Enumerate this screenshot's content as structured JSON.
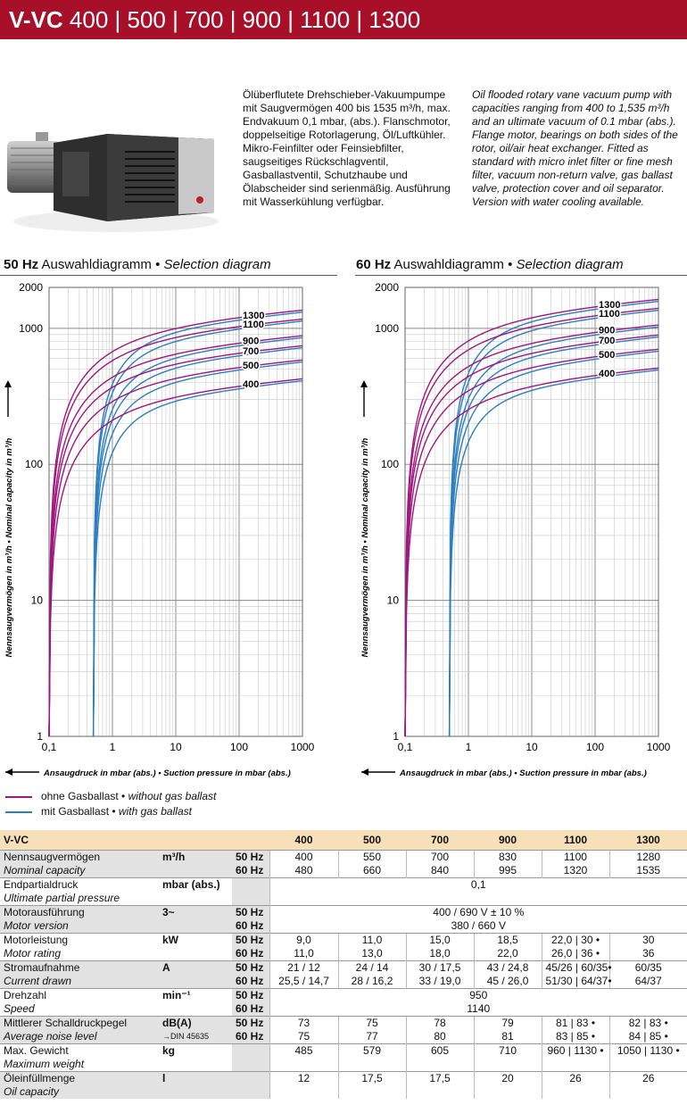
{
  "header": {
    "model": "V-VC",
    "sizes": "400 | 500 | 700 | 900 | 1100 | 1300"
  },
  "description": {
    "de": "Ölüberflutete Drehschieber-Vakuumpumpe mit Saugvermögen 400 bis 1535 m³/h, max. Endvakuum 0,1 mbar, (abs.). Flanschmotor, doppelseitige Rotorlagerung, Öl/Luftkühler. Mikro-Feinfilter oder Feinsiebfilter, saugseitiges Rückschlagventil, Gasballastventil, Schutzhaube und Ölabscheider sind serienmäßig. Ausführung mit Wasserkühlung verfügbar.",
    "en": "Oil flooded rotary vane vacuum pump with capacities ranging from 400 to 1,535 m³/h and an ultimate vacuum of 0.1 mbar (abs.). Flange motor, bearings on both sides of the rotor, oil/air heat exchanger. Fitted as standard with micro inlet filter or fine mesh filter, vacuum non-return valve, gas ballast valve, protection cover and oil separator. Version with water cooling available."
  },
  "diagrams": {
    "title_50_hz": "50 Hz",
    "title_50_rest": "Auswahldiagramm •",
    "title_50_it": "Selection diagram",
    "title_60_hz": "60 Hz",
    "title_60_rest": "Auswahldiagramm •",
    "title_60_it": "Selection diagram",
    "ylabel": "Nennsaugvermögen in m³/h • Nominal capacity in m³/h",
    "xlabel": "Ansaugdruck in mbar (abs.) • Suction pressure in mbar (abs.)"
  },
  "legend": {
    "without": "ohne Gasballast •",
    "without_it": "without gas ballast",
    "with": "mit Gasballast •",
    "with_it": "with gas ballast",
    "color_without": "#a0167e",
    "color_with": "#2b7fc0"
  },
  "chart_data": [
    {
      "type": "line",
      "title": "50 Hz Auswahldiagramm • Selection diagram",
      "xscale": "log",
      "yscale": "log",
      "xlim": [
        0.1,
        1000
      ],
      "ylim": [
        1,
        2000
      ],
      "xticks": [
        "0,1",
        "1",
        "10",
        "100",
        "1000"
      ],
      "yticks": [
        "1",
        "10",
        "100",
        "1000",
        "2000"
      ],
      "xlabel": "Ansaugdruck in mbar (abs.) • Suction pressure in mbar (abs.)",
      "ylabel": "Nennsaugvermögen in m³/h • Nominal capacity in m³/h",
      "ultimate_pressure_without_gas_ballast": 0.1,
      "ultimate_pressure_with_gas_ballast": 0.5,
      "series": [
        {
          "name": "1300",
          "max_capacity": 1280
        },
        {
          "name": "1100",
          "max_capacity": 1100
        },
        {
          "name": "900",
          "max_capacity": 830
        },
        {
          "name": "700",
          "max_capacity": 700
        },
        {
          "name": "500",
          "max_capacity": 550
        },
        {
          "name": "400",
          "max_capacity": 400
        }
      ]
    },
    {
      "type": "line",
      "title": "60 Hz Auswahldiagramm • Selection diagram",
      "xscale": "log",
      "yscale": "log",
      "xlim": [
        0.1,
        1000
      ],
      "ylim": [
        1,
        2000
      ],
      "xticks": [
        "0,1",
        "1",
        "10",
        "100",
        "1000"
      ],
      "yticks": [
        "1",
        "10",
        "100",
        "1000",
        "2000"
      ],
      "xlabel": "Ansaugdruck in mbar (abs.) • Suction pressure in mbar (abs.)",
      "ylabel": "Nennsaugvermögen in m³/h • Nominal capacity in m³/h",
      "ultimate_pressure_without_gas_ballast": 0.1,
      "ultimate_pressure_with_gas_ballast": 0.5,
      "series": [
        {
          "name": "1300",
          "max_capacity": 1535
        },
        {
          "name": "1100",
          "max_capacity": 1320
        },
        {
          "name": "900",
          "max_capacity": 995
        },
        {
          "name": "700",
          "max_capacity": 840
        },
        {
          "name": "500",
          "max_capacity": 660
        },
        {
          "name": "400",
          "max_capacity": 480
        }
      ]
    }
  ],
  "table": {
    "header": [
      "V-VC",
      "400",
      "500",
      "700",
      "900",
      "1100",
      "1300"
    ],
    "rows": [
      {
        "de": "Nennsaugvermögen",
        "en": "Nominal capacity",
        "unit": "m³/h",
        "shade": "g",
        "hz": [
          "50 Hz",
          "60 Hz"
        ],
        "vals": [
          [
            "400",
            "550",
            "700",
            "830",
            "1100",
            "1280"
          ],
          [
            "480",
            "660",
            "840",
            "995",
            "1320",
            "1535"
          ]
        ]
      },
      {
        "de": "Endpartialdruck",
        "en": "Ultimate partial pressure",
        "unit": "mbar (abs.)",
        "shade": "w",
        "hz": [
          "",
          ""
        ],
        "span": [
          "0,1",
          ""
        ]
      },
      {
        "de": "Motorausführung",
        "en": "Motor version",
        "unit": "3~",
        "shade": "g",
        "hz": [
          "50 Hz",
          "60 Hz"
        ],
        "span": [
          "400 / 690 V ± 10 %",
          "380 / 660 V"
        ]
      },
      {
        "de": "Motorleistung",
        "en": "Motor rating",
        "unit": "kW",
        "shade": "w",
        "hz": [
          "50 Hz",
          "60 Hz"
        ],
        "vals": [
          [
            "9,0",
            "11,0",
            "15,0",
            "18,5",
            "22,0 | 30 •",
            "30"
          ],
          [
            "11,0",
            "13,0",
            "18,0",
            "22,0",
            "26,0 | 36 •",
            "36"
          ]
        ]
      },
      {
        "de": "Stromaufnahme",
        "en": "Current drawn",
        "unit": "A",
        "shade": "g",
        "hz": [
          "50 Hz",
          "60 Hz"
        ],
        "vals": [
          [
            "21 / 12",
            "24 / 14",
            "30 / 17,5",
            "43 / 24,8",
            "45/26 | 60/35•",
            "60/35"
          ],
          [
            "25,5 / 14,7",
            "28 / 16,2",
            "33 / 19,0",
            "45 / 26,0",
            "51/30 | 64/37•",
            "64/37"
          ]
        ]
      },
      {
        "de": "Drehzahl",
        "en": "Speed",
        "unit": "min⁻¹",
        "shade": "w",
        "hz": [
          "50 Hz",
          "60 Hz"
        ],
        "span": [
          "950",
          "1140"
        ]
      },
      {
        "de": "Mittlerer Schalldruckpegel",
        "en": "Average noise level",
        "unit": "dB(A)",
        "unit2": "→DIN 45635",
        "shade": "g",
        "hz": [
          "50 Hz",
          "60 Hz"
        ],
        "vals": [
          [
            "73",
            "75",
            "78",
            "79",
            "81 | 83 •",
            "82 | 83 •"
          ],
          [
            "75",
            "77",
            "80",
            "81",
            "83 | 85 •",
            "84 | 85 •"
          ]
        ]
      },
      {
        "de": "Max. Gewicht",
        "en": "Maximum weight",
        "unit": "kg",
        "shade": "w",
        "hz": [
          "",
          ""
        ],
        "vals": [
          [
            "485",
            "579",
            "605",
            "710",
            "960 | 1130 •",
            "1050 | 1130 •"
          ],
          [
            "",
            "",
            "",
            "",
            "",
            ""
          ]
        ]
      },
      {
        "de": "Öleinfüllmenge",
        "en": "Oil capacity",
        "unit": "l",
        "shade": "g",
        "hz": [
          "",
          ""
        ],
        "vals": [
          [
            "12",
            "17,5",
            "17,5",
            "20",
            "26",
            "26"
          ],
          [
            "",
            "",
            "",
            "",
            "",
            ""
          ]
        ]
      }
    ]
  }
}
